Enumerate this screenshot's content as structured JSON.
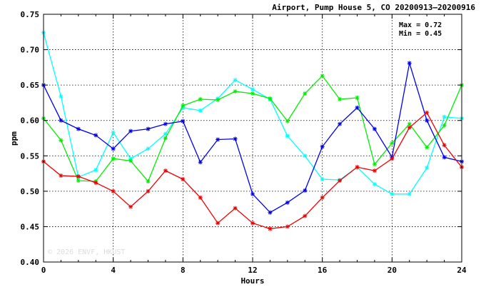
{
  "chart_data": {
    "type": "line",
    "title": "Airport, Pump House 5, CO 20200913–20200916",
    "xlabel": "Hours",
    "ylabel": "ppm",
    "xlim": [
      0,
      24
    ],
    "ylim": [
      0.4,
      0.75
    ],
    "xticks": [
      0,
      4,
      8,
      12,
      16,
      20,
      24
    ],
    "xtick_labels": [
      "0",
      "4",
      "8",
      "12",
      "16",
      "20",
      "24"
    ],
    "yticks": [
      0.4,
      0.45,
      0.5,
      0.55,
      0.6,
      0.65,
      0.7,
      0.75
    ],
    "ytick_labels": [
      "0.40",
      "0.45",
      "0.50",
      "0.55",
      "0.60",
      "0.65",
      "0.70",
      "0.75"
    ],
    "grid": true,
    "annotations": {
      "max": "Max = 0.72",
      "min": "Min = 0.45"
    },
    "watermark": "© 2026 ENVF, HKUST",
    "x": [
      0,
      1,
      2,
      3,
      4,
      5,
      6,
      7,
      8,
      9,
      10,
      11,
      12,
      13,
      14,
      15,
      16,
      17,
      18,
      19,
      20,
      21,
      22,
      23,
      24
    ],
    "series": [
      {
        "color": "#00ffff",
        "values": [
          0.724,
          0.634,
          0.52,
          0.53,
          0.583,
          0.546,
          0.56,
          0.581,
          0.618,
          0.614,
          0.631,
          0.657,
          0.644,
          0.63,
          0.578,
          0.55,
          0.517,
          0.516,
          0.534,
          0.51,
          0.496,
          0.496,
          0.533,
          0.605,
          0.603
        ]
      },
      {
        "color": "#00ee00",
        "values": [
          0.603,
          0.572,
          0.515,
          0.514,
          0.546,
          0.543,
          0.514,
          0.575,
          0.621,
          0.63,
          0.629,
          0.641,
          0.638,
          0.631,
          0.599,
          0.638,
          0.663,
          0.63,
          0.632,
          0.538,
          0.568,
          0.595,
          0.562,
          0.593,
          0.65
        ]
      },
      {
        "color": "#0000ee",
        "values": [
          0.65,
          0.6,
          0.588,
          0.579,
          0.56,
          0.585,
          0.588,
          0.595,
          0.599,
          0.541,
          0.573,
          0.574,
          0.496,
          0.47,
          0.484,
          0.501,
          0.563,
          0.595,
          0.618,
          0.588,
          0.548,
          0.681,
          0.6,
          0.548,
          0.542
        ]
      },
      {
        "color": "#ee0000",
        "values": [
          0.542,
          0.522,
          0.521,
          0.512,
          0.5,
          0.478,
          0.5,
          0.529,
          0.517,
          0.491,
          0.455,
          0.476,
          0.455,
          0.447,
          0.45,
          0.465,
          0.491,
          0.515,
          0.534,
          0.529,
          0.546,
          0.59,
          0.611,
          0.565,
          0.534
        ]
      }
    ]
  }
}
